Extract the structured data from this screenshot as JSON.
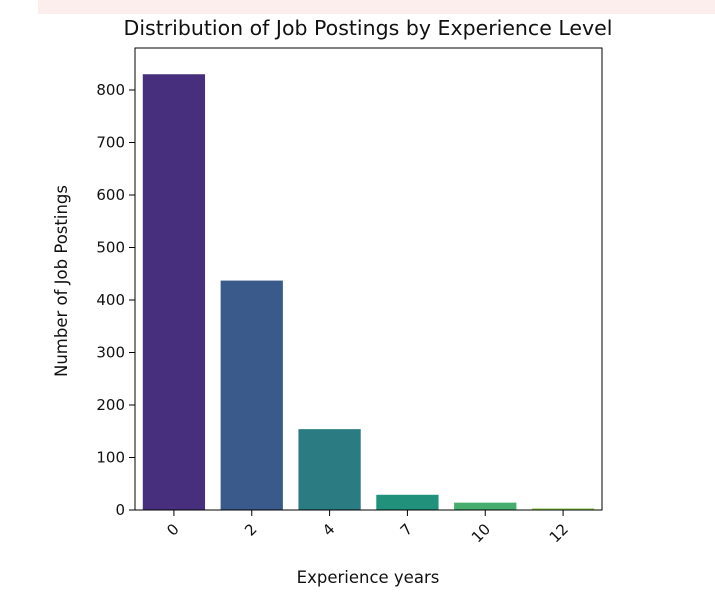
{
  "chart_data": {
    "type": "bar",
    "title": "Distribution of Job Postings by Experience Level",
    "xlabel": "Experience years",
    "ylabel": "Number of Job Postings",
    "categories": [
      "0",
      "2",
      "4",
      "7",
      "10",
      "12"
    ],
    "values": [
      830,
      437,
      154,
      29,
      14,
      3
    ],
    "ylim": [
      0,
      880
    ],
    "yticks": [
      0,
      100,
      200,
      300,
      400,
      500,
      600,
      700,
      800
    ],
    "colors": [
      "#472f7d",
      "#3b5a8c",
      "#2b7b83",
      "#21917c",
      "#46ad6e",
      "#8fcb4e"
    ],
    "grid": false,
    "x_tick_rotation": 45
  }
}
